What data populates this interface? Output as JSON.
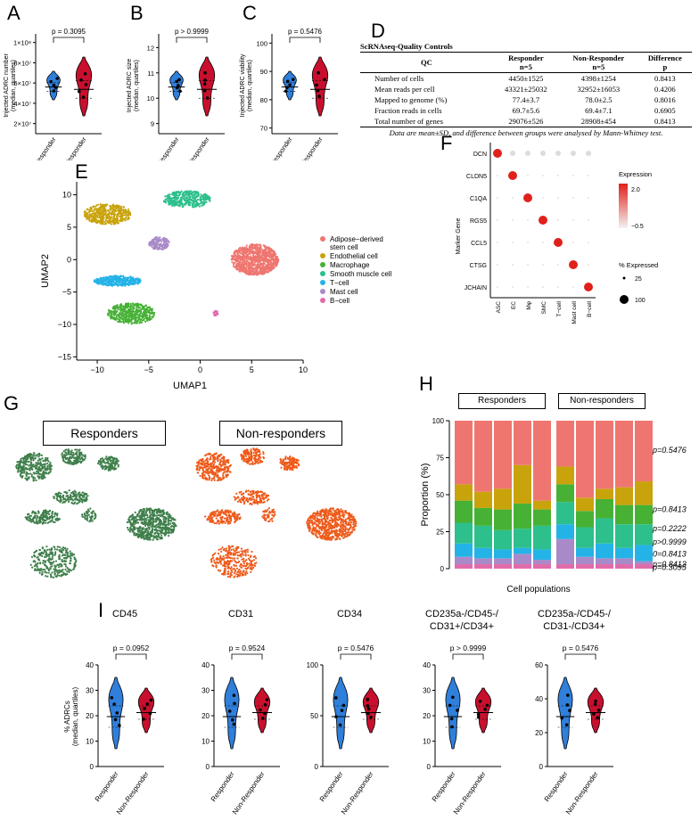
{
  "panels": {
    "A": "A",
    "B": "B",
    "C": "C",
    "D": "D",
    "E": "E",
    "F": "F",
    "G": "G",
    "H": "H",
    "I": "I"
  },
  "colors": {
    "responder": "#2f7fdb",
    "non_responder": "#c8102e",
    "asc": "#ef7670",
    "ec": "#c9a30c",
    "mac": "#46b135",
    "smc": "#2dbf8c",
    "tcell": "#24b3e6",
    "mast": "#a98ac9",
    "bcell": "#e16bab",
    "resp_umap": "#3f7f4b",
    "nonresp_umap": "#ee5a1a"
  },
  "top_violins": [
    {
      "id": "A",
      "ylabel1": "Injected ADRC number",
      "ylabel2": "(median, quartiles)",
      "pvalue": "p = 0.3095",
      "ticks": [
        "1×10⁸",
        "8×10⁷",
        "6×10⁷",
        "4×10⁷",
        "2×10⁷"
      ],
      "tickvals": [
        100,
        80,
        60,
        40,
        20
      ],
      "ymin": 10,
      "ymax": 105,
      "groups": [
        "Responder",
        "Non-Responder"
      ]
    },
    {
      "id": "B",
      "ylabel1": "Injected ADRC size",
      "ylabel2": "(median, quartiles)",
      "pvalue": "p > 0.9999",
      "ticks": [
        "12",
        "11",
        "10",
        "9"
      ],
      "tickvals": [
        12,
        11,
        10,
        9
      ],
      "ymin": 8.6,
      "ymax": 12.4,
      "groups": [
        "Responder",
        "Non-Responder"
      ]
    },
    {
      "id": "C",
      "ylabel1": "Injected ADRC viability",
      "ylabel2": "(median, quartiles)",
      "pvalue": "p = 0.5476",
      "ticks": [
        "100",
        "90",
        "80",
        "70"
      ],
      "tickvals": [
        100,
        90,
        80,
        70
      ],
      "ymin": 68,
      "ymax": 102,
      "groups": [
        "Responder",
        "Non-Responder"
      ]
    }
  ],
  "table": {
    "title": "ScRNAseq-Quality Controls",
    "headers": {
      "qc": "QC",
      "resp": "Responder",
      "resp_n": "n=5",
      "nonresp": "Non-Responder",
      "nonresp_n": "n=5",
      "diff": "Difference",
      "diff_p": "p"
    },
    "rows": [
      [
        "Number of cells",
        "4450±1525",
        "4398±1254",
        "0.8413"
      ],
      [
        "Mean reads per cell",
        "43321±25032",
        "32952±16053",
        "0.4206"
      ],
      [
        "Mapped to genome (%)",
        "77.4±3.7",
        "78.0±2.5",
        "0.8016"
      ],
      [
        "Fraction reads in cells",
        "69.7±5.6",
        "69.4±7.1",
        "0.6905"
      ],
      [
        "Total number of genes",
        "29076±526",
        "28908±454",
        "0.8413"
      ]
    ],
    "footnote": "Data are mean±SD, and difference between groups were analysed by Mann-Whitney test."
  },
  "umap": {
    "xlabel": "UMAP1",
    "ylabel": "UMAP2",
    "xticks": [
      "−10",
      "−5",
      "0",
      "5",
      "10"
    ],
    "xtickvals": [
      -10,
      -5,
      0,
      5,
      10
    ],
    "yticks": [
      "10",
      "5",
      "0",
      "−5",
      "−10",
      "−15"
    ],
    "ytickvals": [
      10,
      5,
      0,
      -5,
      -10,
      -15
    ],
    "legend": [
      {
        "label": "Adipose−derived",
        "label2": "stem cell",
        "color": "#ef7670"
      },
      {
        "label": "Endothelial cell",
        "color": "#c9a30c"
      },
      {
        "label": "Macrophage",
        "color": "#46b135"
      },
      {
        "label": "Smooth muscle cell",
        "color": "#2dbf8c"
      },
      {
        "label": "T−cell",
        "color": "#24b3e6"
      },
      {
        "label": "Mast cell",
        "color": "#a98ac9"
      },
      {
        "label": "B−cell",
        "color": "#e16bab"
      }
    ]
  },
  "dotplot": {
    "ylabel": "Marker Gene",
    "genes": [
      "DCN",
      "CLDN5",
      "C1QA",
      "RGS5",
      "CCL5",
      "CTSG",
      "JCHAIN"
    ],
    "celltypes": [
      "ASC",
      "EC",
      "Mφ",
      "SMC",
      "T−cell",
      "Mast cell",
      "B−cell"
    ],
    "legend_expression": "Expression",
    "expr_ticks": [
      "2.0",
      "−0.5"
    ],
    "legend_pct": "% Expressed",
    "pct_ticks": [
      "25",
      "100"
    ]
  },
  "umap_split": {
    "responders": "Responders",
    "nonresponders": "Non-responders"
  },
  "stacked": {
    "type": "bar",
    "ylabel": "Proportion (%)",
    "xlabel": "Cell populations",
    "group_resp": "Responders",
    "group_nonresp": "Non-responders",
    "yticks": [
      "100",
      "75",
      "50",
      "25",
      "0"
    ],
    "ytickvals": [
      100,
      75,
      50,
      25,
      0
    ],
    "pvalues": [
      "p=0.5476",
      "p=0.8413",
      "p=0.2222",
      "p>0.9999",
      "0=0.8413",
      "p=0.8413",
      "p=0.3095"
    ],
    "pvalue_levels": [
      80,
      40,
      27,
      18,
      10,
      3,
      1
    ],
    "series_order": [
      "B−cell",
      "Mast cell",
      "T−cell",
      "Smooth muscle cell",
      "Macrophage",
      "Endothelial cell",
      "Adipose−derived stem cell"
    ],
    "bars": [
      [
        3,
        5,
        9,
        14,
        15,
        11,
        43
      ],
      [
        3,
        4,
        7,
        15,
        12,
        11,
        48
      ],
      [
        3,
        4,
        6,
        13,
        14,
        14,
        46
      ],
      [
        3,
        7,
        4,
        13,
        17,
        26,
        30
      ],
      [
        3,
        3,
        7,
        16,
        11,
        6,
        54
      ],
      [
        3,
        17,
        10,
        15,
        12,
        12,
        31
      ],
      [
        3,
        5,
        6,
        14,
        11,
        9,
        52
      ],
      [
        3,
        4,
        10,
        17,
        13,
        7,
        46
      ],
      [
        3,
        4,
        7,
        16,
        13,
        12,
        45
      ],
      [
        3,
        2,
        11,
        14,
        13,
        16,
        41
      ]
    ]
  },
  "bottom_violins": {
    "ylabel1": "% ADRCs",
    "ylabel2": "(median, quartiles)",
    "groups": [
      "Responder",
      "Non-Responder"
    ],
    "plots": [
      {
        "title": "CD45",
        "title2": "",
        "pvalue": "p = 0.0952",
        "ymax": 40,
        "ticks": [
          "40",
          "30",
          "20",
          "10",
          "0"
        ],
        "tickvals": [
          40,
          30,
          20,
          10,
          0
        ]
      },
      {
        "title": "CD31",
        "title2": "",
        "pvalue": "p = 0.9524",
        "ymax": 40,
        "ticks": [
          "40",
          "30",
          "20",
          "10",
          "0"
        ],
        "tickvals": [
          40,
          30,
          20,
          10,
          0
        ]
      },
      {
        "title": "CD34",
        "title2": "",
        "pvalue": "p = 0.5476",
        "ymax": 100,
        "ticks": [
          "100",
          "50",
          "0"
        ],
        "tickvals": [
          100,
          50,
          0
        ]
      },
      {
        "title": "CD235a-/CD45-/",
        "title2": "CD31+/CD34+",
        "pvalue": "p > 0.9999",
        "ymax": 40,
        "ticks": [
          "40",
          "30",
          "20",
          "10",
          "0"
        ],
        "tickvals": [
          40,
          30,
          20,
          10,
          0
        ]
      },
      {
        "title": "CD235a-/CD45-/",
        "title2": "CD31-/CD34+",
        "pvalue": "p = 0.5476",
        "ymax": 60,
        "ticks": [
          "60",
          "40",
          "20",
          "0"
        ],
        "tickvals": [
          60,
          40,
          20,
          0
        ]
      }
    ]
  }
}
